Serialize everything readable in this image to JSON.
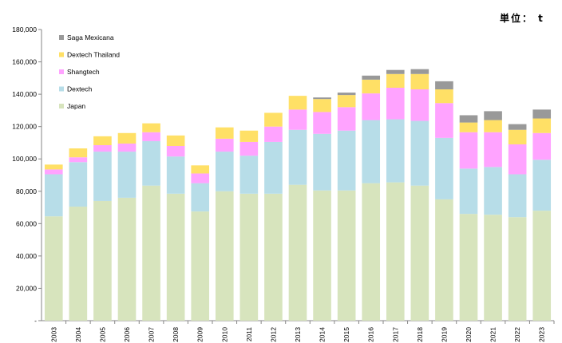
{
  "unit_label": "単位： t",
  "chart_data": {
    "type": "bar",
    "stacked": true,
    "categories": [
      "2003",
      "2004",
      "2005",
      "2006",
      "2007",
      "2008",
      "2009",
      "2010",
      "2011",
      "2012",
      "2013",
      "2014",
      "2015",
      "2016",
      "2017",
      "2018",
      "2019",
      "2020",
      "2021",
      "2022",
      "2023"
    ],
    "series": [
      {
        "name": "Japan",
        "color": "#d7e4bd",
        "values": [
          64500,
          70500,
          74000,
          76000,
          83500,
          78500,
          67500,
          80000,
          78500,
          78500,
          84000,
          80500,
          80500,
          85000,
          85500,
          83500,
          75000,
          66000,
          65500,
          64000,
          68000
        ]
      },
      {
        "name": "Dextech",
        "color": "#b7dde8",
        "values": [
          26000,
          27500,
          30500,
          28500,
          27500,
          23000,
          17500,
          24500,
          23500,
          32000,
          34000,
          35000,
          37000,
          39000,
          39000,
          40000,
          38000,
          28000,
          29500,
          26500,
          31500
        ]
      },
      {
        "name": "Shangtech",
        "color": "#ffa3ff",
        "values": [
          3000,
          3000,
          4000,
          5000,
          5500,
          6500,
          6000,
          8000,
          8500,
          9500,
          12500,
          13500,
          14500,
          16500,
          19500,
          19500,
          21500,
          22500,
          21500,
          18500,
          16500
        ]
      },
      {
        "name": "Dextech Thailand",
        "color": "#ffe066",
        "values": [
          3000,
          5500,
          5500,
          6500,
          5500,
          6500,
          5000,
          7000,
          7000,
          8500,
          8500,
          8000,
          7500,
          8500,
          8500,
          9500,
          8500,
          6000,
          7500,
          9000,
          9000
        ]
      },
      {
        "name": "Saga Mexicana",
        "color": "#999999",
        "values": [
          0,
          0,
          0,
          0,
          0,
          0,
          0,
          0,
          0,
          0,
          0,
          1000,
          1500,
          2500,
          2500,
          3000,
          5000,
          4500,
          5500,
          3500,
          5500
        ]
      }
    ],
    "legend_order": [
      "Saga Mexicana",
      "Dextech Thailand",
      "Shangtech",
      "Dextech",
      "Japan"
    ],
    "ylim": [
      0,
      180000
    ],
    "yticks": [
      "-",
      "20,000",
      "40,000",
      "60,000",
      "80,000",
      "100,000",
      "120,000",
      "140,000",
      "160,000",
      "180,000"
    ],
    "grid": false,
    "legend_position": "top-left"
  }
}
